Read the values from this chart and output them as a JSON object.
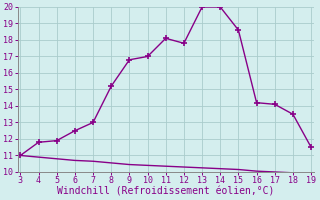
{
  "x": [
    3,
    4,
    5,
    6,
    7,
    8,
    9,
    10,
    11,
    12,
    13,
    14,
    15,
    16,
    17,
    18,
    19
  ],
  "upper": [
    11,
    11.8,
    11.9,
    12.5,
    13.0,
    15.2,
    16.8,
    17.0,
    18.1,
    17.8,
    20.0,
    20.0,
    18.6,
    14.2,
    14.1,
    13.5,
    11.5
  ],
  "lower": [
    11.0,
    10.9,
    10.8,
    10.7,
    10.65,
    10.55,
    10.45,
    10.4,
    10.35,
    10.3,
    10.25,
    10.2,
    10.15,
    10.05,
    10.0,
    9.95,
    9.9
  ],
  "ylim": [
    10,
    20
  ],
  "xlim": [
    3,
    19
  ],
  "yticks": [
    10,
    11,
    12,
    13,
    14,
    15,
    16,
    17,
    18,
    19,
    20
  ],
  "xticks": [
    3,
    4,
    5,
    6,
    7,
    8,
    9,
    10,
    11,
    12,
    13,
    14,
    15,
    16,
    17,
    18,
    19
  ],
  "xlabel": "Windchill (Refroidissement éolien,°C)",
  "line_color": "#880088",
  "bg_color": "#d4eeee",
  "grid_color": "#aacccc",
  "marker": "+",
  "markersize": 5,
  "linewidth": 1.0,
  "xlabel_fontsize": 7.0,
  "tick_fontsize": 6.0
}
